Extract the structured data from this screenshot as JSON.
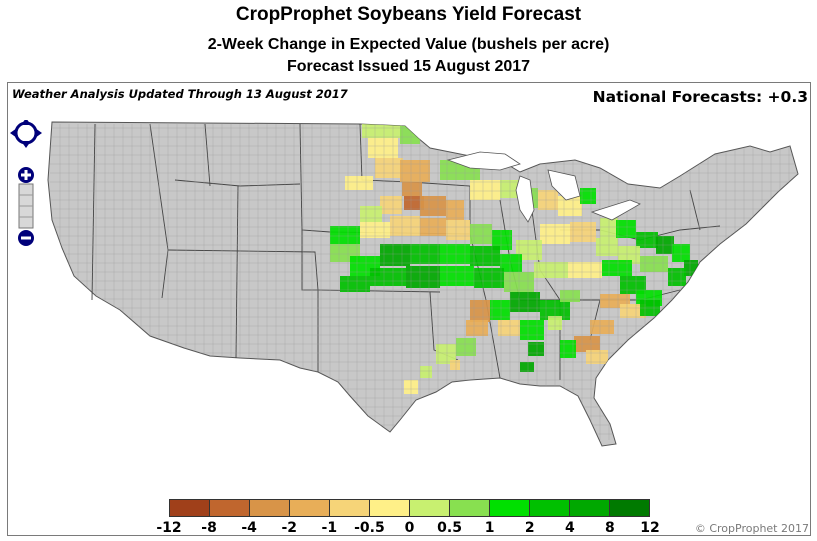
{
  "header": {
    "title": "CropProphet Soybeans Yield Forecast",
    "subtitle": "2-Week Change in Expected Value (bushels per acre)",
    "issued": "Forecast Issued 15 August 2017"
  },
  "map": {
    "analysis_note": "Weather Analysis Updated Through 13 August 2017",
    "national_forecast": "National Forecasts: +0.3",
    "base_color": "#c8c8c8",
    "border_color": "#555555"
  },
  "navigation": {
    "pan_control": "pan-arrows-icon",
    "zoom_in": "plus-icon",
    "zoom_out": "minus-icon"
  },
  "legend": {
    "ticks": [
      "-12",
      "-8",
      "-4",
      "-2",
      "-1",
      "-0.5",
      "0",
      "0.5",
      "1",
      "2",
      "4",
      "8",
      "12"
    ],
    "colors": [
      "#a0401a",
      "#c0662e",
      "#d89448",
      "#e8ae58",
      "#f6d478",
      "#fff088",
      "#c8f070",
      "#88e050",
      "#00e000",
      "#00c000",
      "#00a800",
      "#007a00"
    ]
  },
  "copyright": "© CropProphet 2017"
}
